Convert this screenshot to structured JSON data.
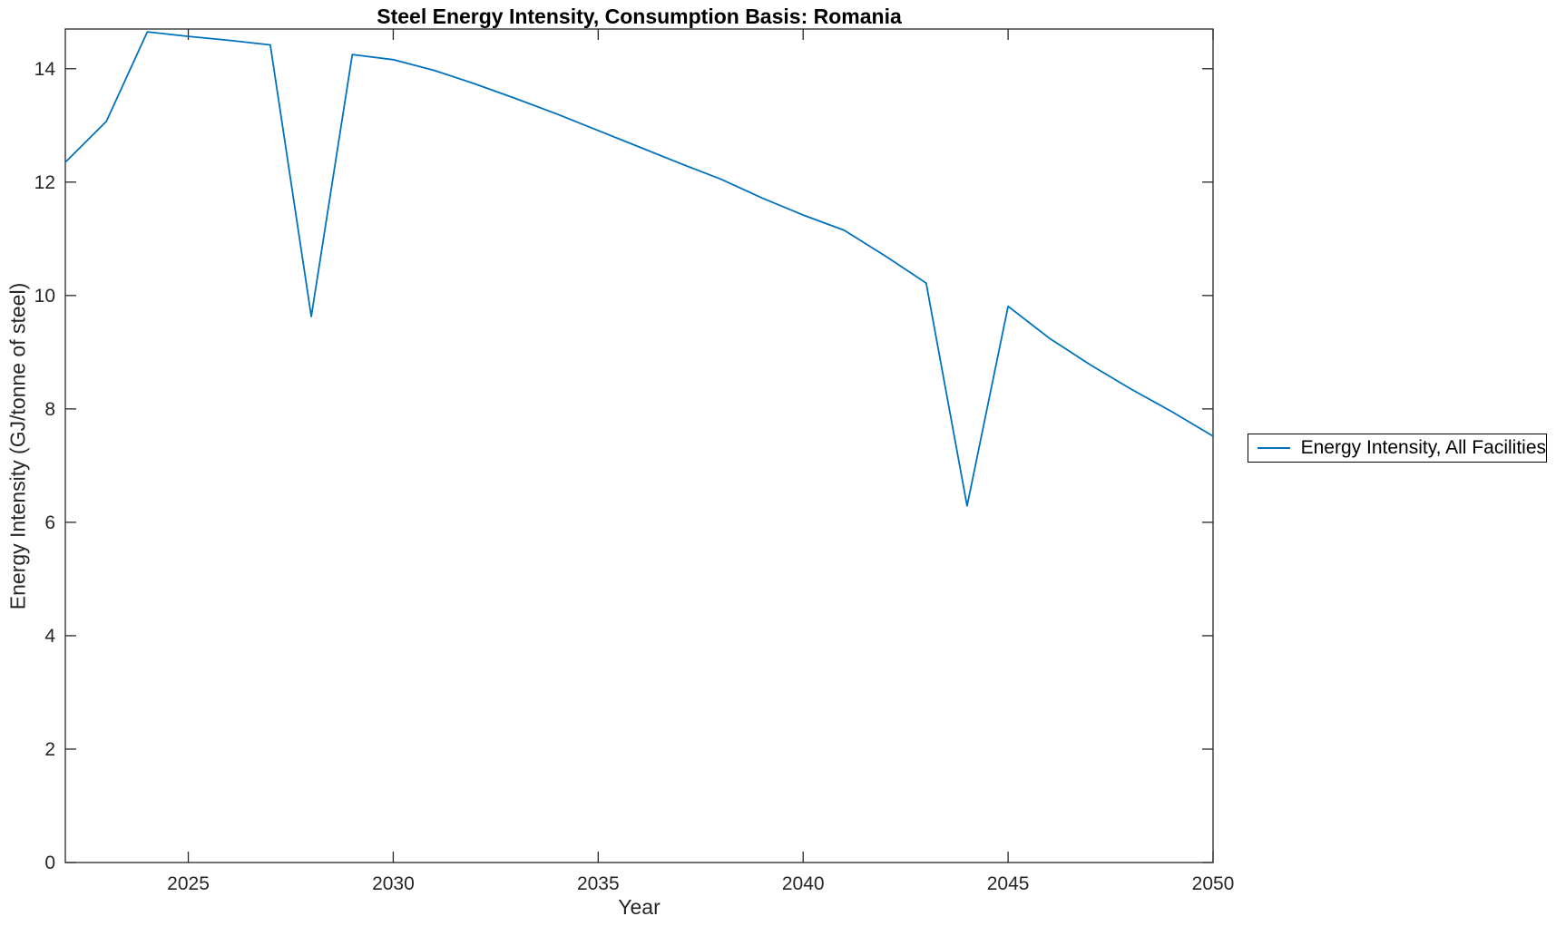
{
  "chart": {
    "title": "Steel Energy Intensity, Consumption Basis: Romania",
    "xlabel": "Year",
    "ylabel": "Energy Intensity (GJ/tonne of steel)",
    "axis_color": "#262626",
    "background_color": "#ffffff"
  },
  "legend": {
    "items": [
      {
        "label": "Energy Intensity, All Facilities",
        "color": "#0072BD"
      }
    ]
  },
  "chart_data": {
    "type": "line",
    "title": "Steel Energy Intensity, Consumption Basis: Romania",
    "xlabel": "Year",
    "ylabel": "Energy Intensity (GJ/tonne of steel)",
    "grid": false,
    "legend_position": "right-outside",
    "xlim": [
      2022,
      2050
    ],
    "ylim": [
      0,
      14.7
    ],
    "xticks": [
      2025,
      2030,
      2035,
      2040,
      2045,
      2050
    ],
    "yticks": [
      0,
      2,
      4,
      6,
      8,
      10,
      12,
      14
    ],
    "x": [
      2022,
      2023,
      2024,
      2025,
      2026,
      2027,
      2028,
      2029,
      2030,
      2031,
      2032,
      2033,
      2034,
      2035,
      2036,
      2037,
      2038,
      2039,
      2040,
      2041,
      2042,
      2043,
      2044,
      2045,
      2046,
      2047,
      2048,
      2049,
      2050
    ],
    "series": [
      {
        "name": "Energy Intensity, All Facilities",
        "color": "#0072BD",
        "values": [
          12.35,
          13.07,
          14.65,
          14.57,
          14.5,
          14.42,
          9.63,
          14.25,
          14.16,
          13.97,
          13.73,
          13.47,
          13.2,
          12.91,
          12.62,
          12.33,
          12.05,
          11.72,
          11.42,
          11.15,
          10.7,
          10.22,
          6.29,
          9.81,
          9.25,
          8.78,
          8.35,
          7.95,
          7.52
        ]
      }
    ]
  }
}
